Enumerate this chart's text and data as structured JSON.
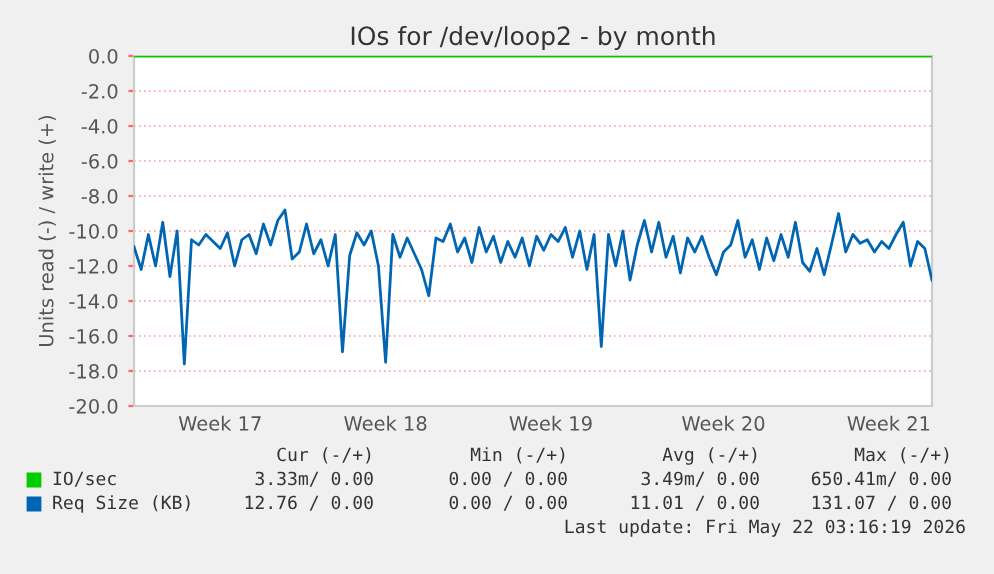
{
  "chart_data": {
    "type": "line",
    "title": "IOs for /dev/loop2 - by month",
    "ylabel": "Units read (-) / write (+)",
    "ylim": [
      -20,
      0
    ],
    "categories": [
      null,
      null,
      null,
      null,
      null,
      null,
      null,
      null,
      null,
      null,
      null,
      null,
      "Week 17",
      null,
      null,
      null,
      null,
      null,
      null,
      null,
      null,
      null,
      null,
      null,
      null,
      null,
      null,
      null,
      null,
      null,
      null,
      null,
      null,
      null,
      null,
      "Week 18",
      null,
      null,
      null,
      null,
      null,
      null,
      null,
      null,
      null,
      null,
      null,
      null,
      null,
      null,
      null,
      null,
      null,
      null,
      null,
      null,
      null,
      null,
      "Week 19",
      null,
      null,
      null,
      null,
      null,
      null,
      null,
      null,
      null,
      null,
      null,
      null,
      null,
      null,
      null,
      null,
      null,
      null,
      null,
      null,
      null,
      null,
      null,
      "Week 20",
      null,
      null,
      null,
      null,
      null,
      null,
      null,
      null,
      null,
      null,
      null,
      null,
      null,
      null,
      null,
      null,
      null,
      null,
      null,
      null,
      null,
      null,
      "Week 21",
      null,
      null,
      null,
      null,
      null,
      null
    ],
    "yticks": [
      {
        "value": -20,
        "label": "-20.0"
      },
      {
        "value": -18,
        "label": "-18.0"
      },
      {
        "value": -16,
        "label": "-16.0"
      },
      {
        "value": -14,
        "label": "-14.0"
      },
      {
        "value": -12,
        "label": "-12.0"
      },
      {
        "value": -10,
        "label": "-10.0"
      },
      {
        "value": -8,
        "label": "-8.0"
      },
      {
        "value": -6,
        "label": "-6.0"
      },
      {
        "value": -4,
        "label": "-4.0"
      },
      {
        "value": -2,
        "label": "-2.0"
      },
      {
        "value": 0,
        "label": "0.0"
      }
    ],
    "grid": "y",
    "legend": "bottom",
    "marker": "none",
    "line_style": "solid",
    "series": [
      {
        "name": "IO/sec",
        "color": "#00cc00",
        "values": [
          0,
          0,
          0,
          0,
          0,
          0,
          0,
          0,
          0,
          0,
          0,
          0,
          0,
          0,
          0,
          0,
          0,
          0,
          0,
          0,
          0,
          0,
          0,
          0,
          0,
          0,
          0,
          0,
          0,
          0,
          0,
          0,
          0,
          0,
          0,
          0,
          0,
          0,
          0,
          0,
          0,
          0,
          0,
          0,
          0,
          0,
          0,
          0,
          0,
          0,
          0,
          0,
          0,
          0,
          0,
          0,
          0,
          0,
          0,
          0,
          0,
          0,
          0,
          0,
          0,
          0,
          0,
          0,
          0,
          0,
          0,
          0,
          0,
          0,
          0,
          0,
          0,
          0,
          0,
          0,
          0,
          0,
          0,
          0,
          0,
          0,
          0,
          0,
          0,
          0,
          0,
          0,
          0,
          0,
          0,
          0,
          0,
          0,
          0,
          0,
          0,
          0,
          0,
          0,
          0,
          0,
          0,
          0,
          0,
          0,
          0,
          0
        ]
      },
      {
        "name": "Req Size (KB)",
        "color": "#0066b3",
        "values": [
          -10.9,
          -12.2,
          -10.2,
          -12.0,
          -9.5,
          -12.6,
          -10.0,
          -17.6,
          -10.5,
          -10.8,
          -10.2,
          -10.6,
          -11.0,
          -10.1,
          -12.0,
          -10.5,
          -10.2,
          -11.3,
          -9.6,
          -10.8,
          -9.4,
          -8.8,
          -11.6,
          -11.2,
          -9.6,
          -11.3,
          -10.5,
          -12.0,
          -10.2,
          -16.9,
          -11.4,
          -10.1,
          -10.8,
          -10.0,
          -12.0,
          -17.5,
          -10.2,
          -11.5,
          -10.4,
          -11.3,
          -12.2,
          -13.7,
          -10.4,
          -10.6,
          -9.6,
          -11.2,
          -10.4,
          -11.8,
          -9.8,
          -11.2,
          -10.3,
          -11.8,
          -10.6,
          -11.5,
          -10.4,
          -12.0,
          -10.3,
          -11.1,
          -10.2,
          -10.6,
          -9.8,
          -11.5,
          -10.0,
          -12.2,
          -10.2,
          -16.6,
          -10.2,
          -12.0,
          -10.0,
          -12.8,
          -10.8,
          -9.4,
          -11.2,
          -9.5,
          -11.5,
          -10.3,
          -12.4,
          -10.4,
          -11.2,
          -10.3,
          -11.5,
          -12.5,
          -11.2,
          -10.8,
          -9.4,
          -11.5,
          -10.5,
          -12.2,
          -10.4,
          -11.7,
          -10.2,
          -11.5,
          -9.5,
          -11.8,
          -12.3,
          -11.0,
          -12.5,
          -10.8,
          -9.0,
          -11.2,
          -10.2,
          -10.7,
          -10.5,
          -11.2,
          -10.6,
          -11.0,
          -10.2,
          -9.5,
          -12.0,
          -10.6,
          -11.0,
          -12.8
        ]
      }
    ],
    "annotations": [
      "Cur (-/+)",
      "Min (-/+)",
      "Avg (-/+)",
      "Max (-/+)",
      "3.33m/ 0.00",
      "0.00 / 0.00",
      "3.49m/ 0.00",
      "650.41m/ 0.00",
      "12.76 / 0.00",
      "0.00 / 0.00",
      "11.01 / 0.00",
      "131.07 / 0.00",
      "Last update: Fri May 22 03:16:19 2026"
    ]
  }
}
